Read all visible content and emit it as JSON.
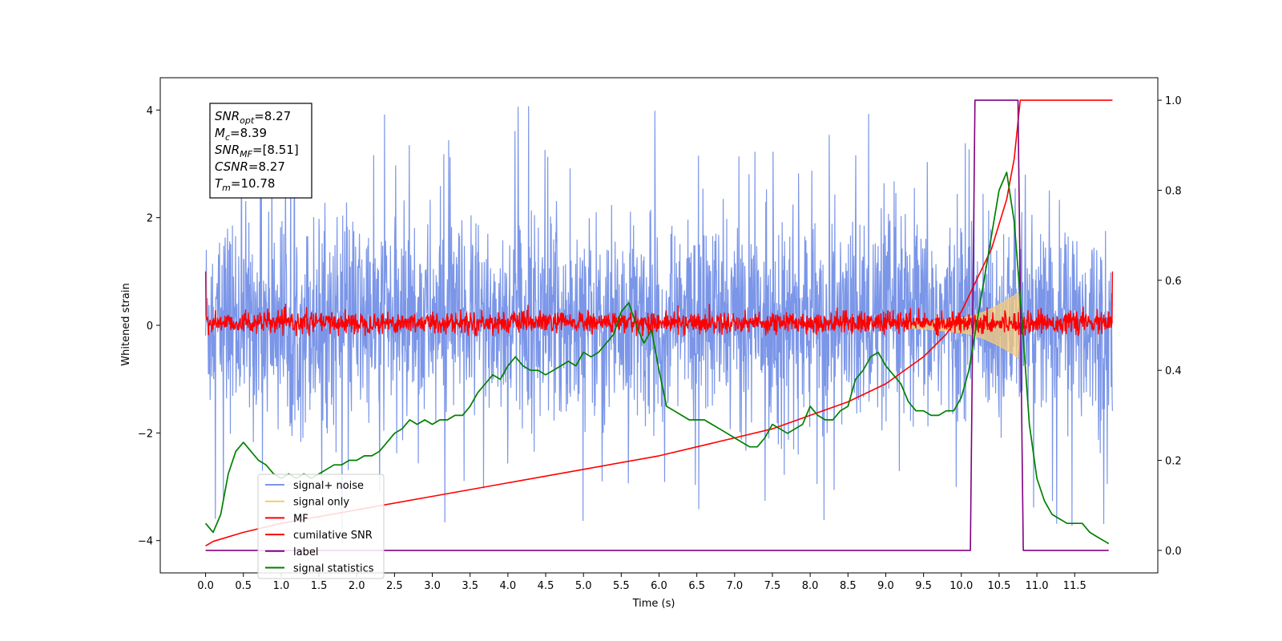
{
  "chart_data": {
    "type": "line",
    "title": "",
    "xlabel": "Time (s)",
    "ylabel": "Whitened strain",
    "xlim": [
      -0.6,
      12.6
    ],
    "ylim_left": [
      -4.6,
      4.6
    ],
    "ylim_right": [
      -0.05,
      1.05
    ],
    "x_ticks": [
      0.0,
      0.5,
      1.0,
      1.5,
      2.0,
      2.5,
      3.0,
      3.5,
      4.0,
      4.5,
      5.0,
      5.5,
      6.0,
      6.5,
      7.0,
      7.5,
      8.0,
      8.5,
      9.0,
      9.5,
      10.0,
      10.5,
      11.0,
      11.5
    ],
    "x_tick_labels": [
      "0.0",
      "0.5",
      "1.0",
      "1.5",
      "2.0",
      "2.5",
      "3.0",
      "3.5",
      "4.0",
      "4.5",
      "5.0",
      "5.5",
      "6.0",
      "6.5",
      "7.0",
      "7.5",
      "8.0",
      "8.5",
      "9.0",
      "9.5",
      "10.0",
      "10.5",
      "11.0",
      "11.5"
    ],
    "y_left_ticks": [
      -4,
      -2,
      0,
      2,
      4
    ],
    "y_left_tick_labels": [
      "−4",
      "−2",
      "0",
      "2",
      "4"
    ],
    "y_right_ticks": [
      0.0,
      0.2,
      0.4,
      0.6,
      0.8,
      1.0
    ],
    "y_right_tick_labels": [
      "0.0",
      "0.2",
      "0.4",
      "0.6",
      "0.8",
      "1.0"
    ],
    "grid": false,
    "legend_position": "lower-left",
    "annotation_lines": [
      {
        "main": "SNR",
        "sub": "opt",
        "rest": "=8.27"
      },
      {
        "main": "M",
        "sub": "c",
        "rest": "=8.39"
      },
      {
        "main": "SNR",
        "sub": "MF",
        "rest": "=[8.51]"
      },
      {
        "main": "CSNR",
        "sub": "",
        "rest": "=8.27"
      },
      {
        "main": "T",
        "sub": "m",
        "rest": "=10.78"
      }
    ],
    "series": [
      {
        "name": "signal+ noise",
        "color": "#7b96e8",
        "axis": "left",
        "style": "noise band",
        "x_range": [
          0.0,
          12.0
        ],
        "typical_range": [
          -1.6,
          1.8
        ],
        "peak_max": 4.1,
        "peak_min": -4.1
      },
      {
        "name": "signal only",
        "color": "#f5c97a",
        "axis": "left",
        "style": "chirp envelope",
        "x": [
          9.3,
          9.6,
          9.9,
          10.1,
          10.3,
          10.5,
          10.7,
          10.75,
          10.78
        ],
        "amplitude": [
          0.05,
          0.08,
          0.12,
          0.16,
          0.25,
          0.38,
          0.55,
          0.62,
          0.0
        ]
      },
      {
        "name": "MF",
        "color": "#ff0000",
        "axis": "left",
        "style": "noise band",
        "x_range": [
          0.0,
          12.0
        ],
        "typical_range": [
          -0.15,
          0.25
        ],
        "peak_max": 0.4,
        "peak_min": -0.2,
        "edge_values": [
          1.0,
          1.0
        ]
      },
      {
        "name": "cumilative SNR",
        "color": "#ff0000",
        "axis": "right",
        "x": [
          0.0,
          0.1,
          0.5,
          1.0,
          2.0,
          3.0,
          4.0,
          5.0,
          6.0,
          7.0,
          7.5,
          8.0,
          8.5,
          9.0,
          9.5,
          9.8,
          10.0,
          10.2,
          10.4,
          10.6,
          10.7,
          10.78,
          12.0
        ],
        "values": [
          0.01,
          0.02,
          0.04,
          0.06,
          0.09,
          0.12,
          0.15,
          0.18,
          0.21,
          0.25,
          0.27,
          0.3,
          0.33,
          0.37,
          0.43,
          0.48,
          0.53,
          0.6,
          0.67,
          0.78,
          0.87,
          1.0,
          1.0
        ]
      },
      {
        "name": "label",
        "color": "#800080",
        "axis": "right",
        "x": [
          0.0,
          10.12,
          10.18,
          10.75,
          10.82,
          11.95
        ],
        "values": [
          0.0,
          0.0,
          1.0,
          1.0,
          0.0,
          0.0
        ]
      },
      {
        "name": "signal statistics",
        "color": "#008000",
        "axis": "right",
        "x": [
          0.0,
          0.1,
          0.2,
          0.3,
          0.4,
          0.5,
          0.6,
          0.7,
          0.8,
          0.9,
          1.0,
          1.1,
          1.2,
          1.3,
          1.4,
          1.5,
          1.6,
          1.7,
          1.8,
          1.9,
          2.0,
          2.1,
          2.2,
          2.3,
          2.4,
          2.5,
          2.6,
          2.7,
          2.8,
          2.9,
          3.0,
          3.1,
          3.2,
          3.3,
          3.4,
          3.5,
          3.6,
          3.7,
          3.8,
          3.9,
          4.0,
          4.1,
          4.2,
          4.3,
          4.4,
          4.5,
          4.6,
          4.7,
          4.8,
          4.9,
          5.0,
          5.1,
          5.2,
          5.3,
          5.4,
          5.5,
          5.6,
          5.7,
          5.8,
          5.9,
          6.0,
          6.1,
          6.2,
          6.3,
          6.4,
          6.5,
          6.6,
          6.7,
          6.8,
          6.9,
          7.0,
          7.1,
          7.2,
          7.3,
          7.4,
          7.5,
          7.6,
          7.7,
          7.8,
          7.9,
          8.0,
          8.1,
          8.2,
          8.3,
          8.4,
          8.5,
          8.6,
          8.7,
          8.8,
          8.9,
          9.0,
          9.1,
          9.2,
          9.3,
          9.4,
          9.5,
          9.6,
          9.7,
          9.8,
          9.9,
          10.0,
          10.1,
          10.2,
          10.3,
          10.4,
          10.5,
          10.6,
          10.7,
          10.8,
          10.9,
          11.0,
          11.1,
          11.2,
          11.3,
          11.4,
          11.5,
          11.6,
          11.7,
          11.8,
          11.9,
          11.95
        ],
        "values": [
          0.06,
          0.04,
          0.08,
          0.17,
          0.22,
          0.24,
          0.22,
          0.2,
          0.19,
          0.17,
          0.16,
          0.17,
          0.16,
          0.17,
          0.16,
          0.17,
          0.18,
          0.19,
          0.19,
          0.2,
          0.2,
          0.21,
          0.21,
          0.22,
          0.24,
          0.26,
          0.27,
          0.29,
          0.28,
          0.29,
          0.28,
          0.29,
          0.29,
          0.3,
          0.3,
          0.32,
          0.35,
          0.37,
          0.39,
          0.38,
          0.41,
          0.43,
          0.41,
          0.4,
          0.4,
          0.39,
          0.4,
          0.41,
          0.42,
          0.41,
          0.44,
          0.43,
          0.44,
          0.46,
          0.48,
          0.53,
          0.55,
          0.5,
          0.46,
          0.49,
          0.4,
          0.32,
          0.31,
          0.3,
          0.29,
          0.29,
          0.29,
          0.28,
          0.27,
          0.26,
          0.25,
          0.24,
          0.23,
          0.23,
          0.25,
          0.28,
          0.27,
          0.26,
          0.27,
          0.28,
          0.32,
          0.3,
          0.29,
          0.29,
          0.31,
          0.32,
          0.38,
          0.4,
          0.43,
          0.44,
          0.41,
          0.39,
          0.37,
          0.33,
          0.31,
          0.31,
          0.3,
          0.3,
          0.31,
          0.31,
          0.34,
          0.4,
          0.5,
          0.6,
          0.7,
          0.8,
          0.84,
          0.73,
          0.52,
          0.28,
          0.16,
          0.11,
          0.08,
          0.07,
          0.06,
          0.06,
          0.06,
          0.04,
          0.03,
          0.02,
          0.015
        ]
      }
    ]
  }
}
